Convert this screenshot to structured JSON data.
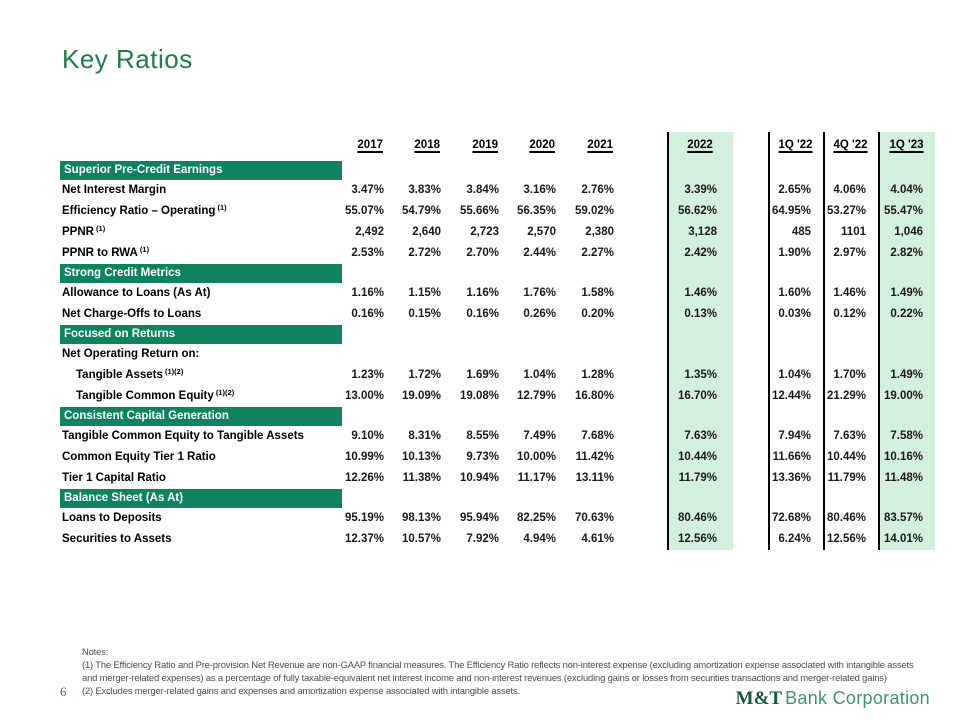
{
  "title": "Key Ratios",
  "page_number": "6",
  "logo": {
    "prefix": "M&T",
    "suffix": "Bank Corporation"
  },
  "colors": {
    "title_green": "#1e7c48",
    "section_bar_green": "#0f8260",
    "highlight_green": "#d3efde",
    "column_rule": "#000000",
    "logo_dark_green": "#15563e",
    "logo_light_green": "#409277"
  },
  "table": {
    "column_headers": [
      "2017",
      "2018",
      "2019",
      "2020",
      "2021",
      "2022",
      "1Q '22",
      "4Q '22",
      "1Q '23"
    ],
    "highlighted_columns": [
      "2022",
      "1Q '23"
    ],
    "rows": [
      {
        "type": "section",
        "label": "Superior Pre-Credit Earnings"
      },
      {
        "type": "data",
        "label": "Net Interest Margin",
        "sup": "",
        "indent": false,
        "values": [
          "3.47%",
          "3.83%",
          "3.84%",
          "3.16%",
          "2.76%",
          "3.39%",
          "2.65%",
          "4.06%",
          "4.04%"
        ]
      },
      {
        "type": "data",
        "label": "Efficiency Ratio – Operating",
        "sup": "(1)",
        "indent": false,
        "values": [
          "55.07%",
          "54.79%",
          "55.66%",
          "56.35%",
          "59.02%",
          "56.62%",
          "64.95%",
          "53.27%",
          "55.47%"
        ]
      },
      {
        "type": "data",
        "label": "PPNR",
        "sup": "(1)",
        "indent": false,
        "values": [
          "2,492",
          "2,640",
          "2,723",
          "2,570",
          "2,380",
          "3,128",
          "485",
          "1101",
          "1,046"
        ]
      },
      {
        "type": "data",
        "label": "PPNR to RWA",
        "sup": "(1)",
        "indent": false,
        "values": [
          "2.53%",
          "2.72%",
          "2.70%",
          "2.44%",
          "2.27%",
          "2.42%",
          "1.90%",
          "2.97%",
          "2.82%"
        ]
      },
      {
        "type": "section",
        "label": "Strong Credit Metrics"
      },
      {
        "type": "data",
        "label": "Allowance to Loans (As At)",
        "sup": "",
        "indent": false,
        "values": [
          "1.16%",
          "1.15%",
          "1.16%",
          "1.76%",
          "1.58%",
          "1.46%",
          "1.60%",
          "1.46%",
          "1.49%"
        ]
      },
      {
        "type": "data",
        "label": "Net Charge-Offs to Loans",
        "sup": "",
        "indent": false,
        "values": [
          "0.16%",
          "0.15%",
          "0.16%",
          "0.26%",
          "0.20%",
          "0.13%",
          "0.03%",
          "0.12%",
          "0.22%"
        ]
      },
      {
        "type": "section",
        "label": "Focused on Returns"
      },
      {
        "type": "data",
        "label": "Net Operating Return on:",
        "sup": "",
        "indent": false,
        "values": [
          "",
          "",
          "",
          "",
          "",
          "",
          "",
          "",
          ""
        ]
      },
      {
        "type": "data",
        "label": "Tangible Assets",
        "sup": "(1)(2)",
        "indent": true,
        "values": [
          "1.23%",
          "1.72%",
          "1.69%",
          "1.04%",
          "1.28%",
          "1.35%",
          "1.04%",
          "1.70%",
          "1.49%"
        ]
      },
      {
        "type": "data",
        "label": "Tangible Common Equity",
        "sup": "(1)(2)",
        "indent": true,
        "values": [
          "13.00%",
          "19.09%",
          "19.08%",
          "12.79%",
          "16.80%",
          "16.70%",
          "12.44%",
          "21.29%",
          "19.00%"
        ]
      },
      {
        "type": "section",
        "label": "Consistent Capital Generation"
      },
      {
        "type": "data",
        "label": "Tangible Common Equity to Tangible Assets",
        "sup": "",
        "indent": false,
        "values": [
          "9.10%",
          "8.31%",
          "8.55%",
          "7.49%",
          "7.68%",
          "7.63%",
          "7.94%",
          "7.63%",
          "7.58%"
        ]
      },
      {
        "type": "data",
        "label": "Common Equity Tier 1 Ratio",
        "sup": "",
        "indent": false,
        "values": [
          "10.99%",
          "10.13%",
          "9.73%",
          "10.00%",
          "11.42%",
          "10.44%",
          "11.66%",
          "10.44%",
          "10.16%"
        ]
      },
      {
        "type": "data",
        "label": "Tier 1 Capital Ratio",
        "sup": "",
        "indent": false,
        "values": [
          "12.26%",
          "11.38%",
          "10.94%",
          "11.17%",
          "13.11%",
          "11.79%",
          "13.36%",
          "11.79%",
          "11.48%"
        ]
      },
      {
        "type": "section",
        "label": "Balance Sheet (As At)"
      },
      {
        "type": "data",
        "label": "Loans to Deposits",
        "sup": "",
        "indent": false,
        "values": [
          "95.19%",
          "98.13%",
          "95.94%",
          "82.25%",
          "70.63%",
          "80.46%",
          "72.68%",
          "80.46%",
          "83.57%"
        ]
      },
      {
        "type": "data",
        "label": "Securities to Assets",
        "sup": "",
        "indent": false,
        "values": [
          "12.37%",
          "10.57%",
          "7.92%",
          "4.94%",
          "4.61%",
          "12.56%",
          "6.24%",
          "12.56%",
          "14.01%"
        ]
      }
    ]
  },
  "notes": {
    "heading": "Notes:",
    "line1": "(1) The Efficiency Ratio and Pre-provision Net Revenue are non-GAAP financial measures. The Efficiency Ratio reflects non-interest expense (excluding amortization expense associated with intangible assets",
    "line2": "and merger-related expenses) as a percentage of fully taxable-equivalent net interest income and non-interest revenues (excluding gains or losses from securities transactions and merger-related gains)",
    "line3": "(2) Excludes merger-related gains and expenses and amortization expense associated with intangible assets."
  }
}
